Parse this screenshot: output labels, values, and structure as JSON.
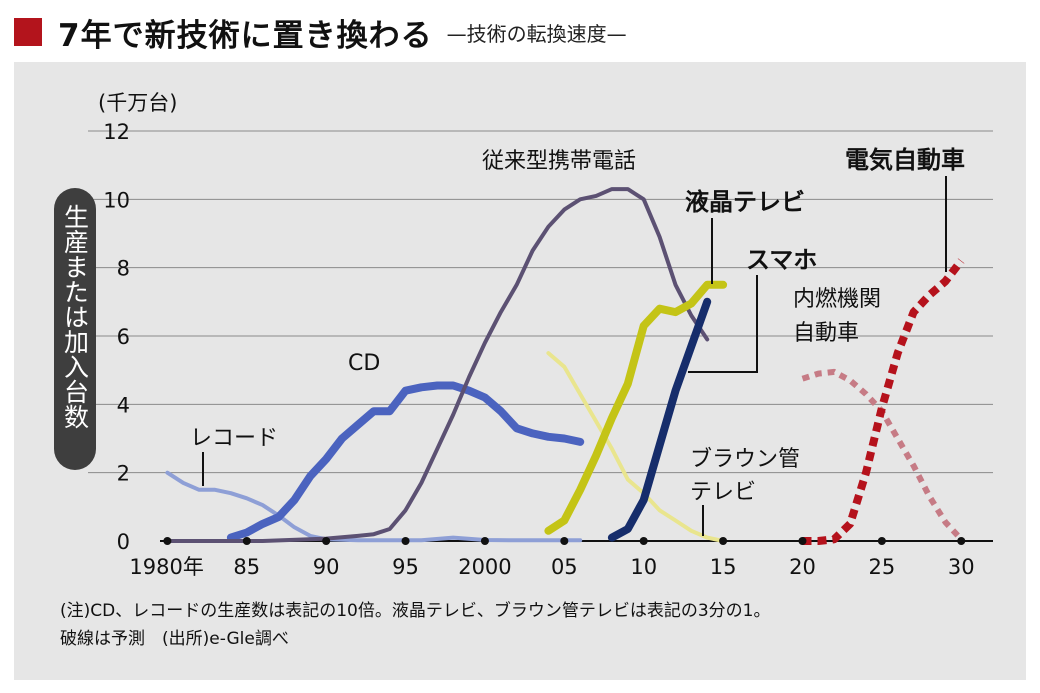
{
  "header": {
    "title": "7年で新技術に置き換わる",
    "subtitle": "—技術の転換速度—"
  },
  "notes": [
    "(注)CD、レコードの生産数は表記の10倍。液晶テレビ、ブラウン管テレビは表記の3分の1。",
    "破線は予測　(出所)e-Gle調べ"
  ],
  "chart_data": {
    "type": "line",
    "unit_label": "(千万台)",
    "ylabel": "生産または加入台数",
    "ylim": [
      0,
      12
    ],
    "xlim": [
      1975,
      2032
    ],
    "y_ticks": [
      0,
      2,
      4,
      6,
      8,
      10,
      12
    ],
    "x_ticks": [
      1980,
      1985,
      1990,
      1995,
      2000,
      2005,
      2010,
      2015,
      2020,
      2025,
      2030
    ],
    "x_tick_labels": [
      "1980年",
      "85",
      "90",
      "95",
      "2000",
      "05",
      "10",
      "15",
      "20",
      "25",
      "30"
    ],
    "grid": true,
    "series": [
      {
        "name": "レコード",
        "color": "#8e9fd6",
        "dashed": false,
        "x": [
          1980,
          1981,
          1982,
          1983,
          1984,
          1985,
          1986,
          1987,
          1988,
          1989,
          1990,
          1992,
          1994,
          1996,
          1998,
          2000,
          2002,
          2004,
          2006
        ],
        "y": [
          2.0,
          1.7,
          1.5,
          1.5,
          1.4,
          1.25,
          1.05,
          0.75,
          0.4,
          0.15,
          0.05,
          0.02,
          0.02,
          0.02,
          0.1,
          0.03,
          0.02,
          0.02,
          0.02
        ]
      },
      {
        "name": "CD",
        "color": "#4b63bf",
        "dashed": false,
        "x": [
          1984,
          1985,
          1986,
          1987,
          1988,
          1989,
          1990,
          1991,
          1992,
          1993,
          1994,
          1995,
          1996,
          1997,
          1998,
          1999,
          2000,
          2001,
          2002,
          2003,
          2004,
          2005,
          2006
        ],
        "y": [
          0.1,
          0.25,
          0.5,
          0.7,
          1.2,
          1.9,
          2.4,
          3.0,
          3.4,
          3.8,
          3.8,
          4.4,
          4.5,
          4.55,
          4.55,
          4.4,
          4.2,
          3.8,
          3.3,
          3.15,
          3.05,
          3.0,
          2.9
        ]
      },
      {
        "name": "従来型携帯電話",
        "color": "#5c5173",
        "dashed": false,
        "x": [
          1980,
          1986,
          1990,
          1992,
          1993,
          1994,
          1995,
          1996,
          1997,
          1998,
          1999,
          2000,
          2001,
          2002,
          2003,
          2004,
          2005,
          2006,
          2007,
          2008,
          2009,
          2010,
          2011,
          2012,
          2013,
          2014
        ],
        "y": [
          0,
          0,
          0.07,
          0.15,
          0.2,
          0.35,
          0.9,
          1.7,
          2.7,
          3.7,
          4.8,
          5.8,
          6.7,
          7.5,
          8.5,
          9.2,
          9.7,
          10.0,
          10.1,
          10.3,
          10.3,
          10.0,
          8.9,
          7.5,
          6.6,
          5.9
        ]
      },
      {
        "name": "ブラウン管テレビ",
        "color": "#e9e58e",
        "dashed": false,
        "x": [
          2004,
          2005,
          2006,
          2007,
          2008,
          2009,
          2010,
          2011,
          2012,
          2013,
          2014,
          2015
        ],
        "y": [
          5.5,
          5.1,
          4.3,
          3.5,
          2.7,
          1.8,
          1.4,
          0.9,
          0.6,
          0.3,
          0.1,
          0.0
        ]
      },
      {
        "name": "液晶テレビ",
        "color": "#c4c416",
        "dashed": false,
        "x": [
          2004,
          2005,
          2006,
          2007,
          2008,
          2009,
          2010,
          2011,
          2012,
          2013,
          2014,
          2015
        ],
        "y": [
          0.3,
          0.6,
          1.5,
          2.5,
          3.6,
          4.6,
          6.3,
          6.8,
          6.7,
          6.95,
          7.5,
          7.5
        ]
      },
      {
        "name": "スマホ",
        "color": "#162d6b",
        "dashed": false,
        "x": [
          2008,
          2009,
          2010,
          2011,
          2012,
          2013,
          2014
        ],
        "y": [
          0.1,
          0.35,
          1.2,
          2.8,
          4.4,
          5.7,
          7.0
        ]
      },
      {
        "name": "内燃機関自動車",
        "color": "#c67b85",
        "dashed": true,
        "x": [
          2020,
          2021,
          2022,
          2023,
          2024,
          2025,
          2026,
          2027,
          2028,
          2029,
          2030
        ],
        "y": [
          4.75,
          4.9,
          4.95,
          4.7,
          4.3,
          3.8,
          3.0,
          2.2,
          1.3,
          0.55,
          0.05
        ]
      },
      {
        "name": "電気自動車",
        "color": "#b5121c",
        "dashed": true,
        "x": [
          2020,
          2021,
          2022,
          2023,
          2024,
          2025,
          2026,
          2027,
          2028,
          2029,
          2030
        ],
        "y": [
          0,
          0,
          0.05,
          0.5,
          2.0,
          3.9,
          5.5,
          6.7,
          7.2,
          7.6,
          8.2
        ]
      }
    ],
    "labels": {
      "record": "レコード",
      "cd": "CD",
      "feature_phone": "従来型携帯電話",
      "lcd_tv": "液晶テレビ",
      "smartphone": "スマホ",
      "ice_car_1": "内燃機関",
      "ice_car_2": "自動車",
      "ev": "電気自動車",
      "crt_tv_1": "ブラウン管",
      "crt_tv_2": "テレビ"
    }
  }
}
